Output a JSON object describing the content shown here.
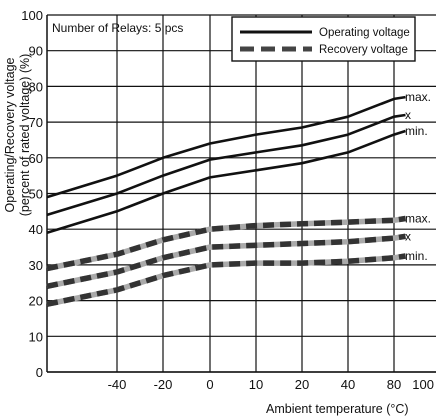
{
  "chart_data": {
    "type": "line",
    "title": "",
    "xlabel": "Ambient temperature (°C)",
    "ylabel_line1": "Operating/Recovery voltage",
    "ylabel_line2": "(percent of rated voltage) (%)",
    "annotation": "Number of Relays: 5 pcs",
    "x_ticks": [
      "-40",
      "-20",
      "0",
      "10",
      "20",
      "40",
      "80",
      "100"
    ],
    "y_ticks": [
      "0",
      "10",
      "20",
      "30",
      "40",
      "50",
      "60",
      "70",
      "80",
      "90",
      "100"
    ],
    "ylim": [
      0,
      100
    ],
    "grid": true,
    "legend": {
      "placement": "top-right",
      "entries": [
        {
          "label": "Operating voltage",
          "style": "solid"
        },
        {
          "label": "Recovery voltage",
          "style": "dashed"
        }
      ]
    },
    "series": [
      {
        "group": "Operating voltage",
        "curve_label": "max.",
        "style": "solid",
        "x": [
          "-60",
          "-40",
          "-20",
          "0",
          "10",
          "20",
          "40",
          "80",
          "85"
        ],
        "y": [
          49,
          55,
          60,
          64,
          66.5,
          68.5,
          71.5,
          76.5,
          77
        ]
      },
      {
        "group": "Operating voltage",
        "curve_label": "x",
        "style": "solid",
        "x": [
          "-60",
          "-40",
          "-20",
          "0",
          "10",
          "20",
          "40",
          "80",
          "85"
        ],
        "y": [
          44,
          50,
          55,
          59.5,
          61.5,
          63.5,
          66.5,
          71.5,
          72
        ]
      },
      {
        "group": "Operating voltage",
        "curve_label": "min.",
        "style": "solid",
        "x": [
          "-60",
          "-40",
          "-20",
          "0",
          "10",
          "20",
          "40",
          "80",
          "85"
        ],
        "y": [
          39,
          45,
          50,
          54.5,
          56.5,
          58.5,
          61.5,
          66.5,
          67.5
        ]
      },
      {
        "group": "Recovery voltage",
        "curve_label": "max.",
        "style": "dashed",
        "x": [
          "-60",
          "-40",
          "-20",
          "0",
          "10",
          "20",
          "40",
          "80",
          "85"
        ],
        "y": [
          29,
          33,
          37,
          40,
          41,
          41.5,
          42,
          42.5,
          43
        ]
      },
      {
        "group": "Recovery voltage",
        "curve_label": "x",
        "style": "dashed",
        "x": [
          "-60",
          "-40",
          "-20",
          "0",
          "10",
          "20",
          "40",
          "80",
          "85"
        ],
        "y": [
          24,
          28,
          32,
          35,
          35.5,
          36,
          36.5,
          37.5,
          38
        ]
      },
      {
        "group": "Recovery voltage",
        "curve_label": "min.",
        "style": "dashed",
        "x": [
          "-60",
          "-40",
          "-20",
          "0",
          "10",
          "20",
          "40",
          "80",
          "85"
        ],
        "y": [
          19,
          23,
          27,
          30,
          30.5,
          30.5,
          31,
          32,
          32.5
        ]
      }
    ]
  }
}
